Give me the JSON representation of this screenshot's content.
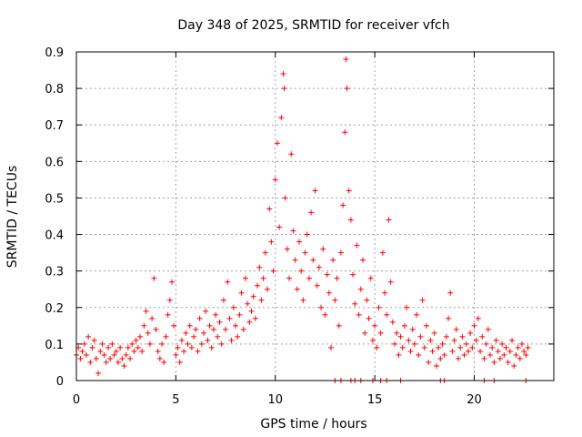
{
  "chart_data": {
    "type": "scatter",
    "title": "Day 348 of 2025, SRMTID for receiver vfch",
    "xlabel": "GPS time / hours",
    "ylabel": "SRMTID / TECUs",
    "xlim": [
      0,
      24
    ],
    "ylim": [
      0,
      0.9
    ],
    "xticks": [
      0,
      5,
      10,
      15,
      20
    ],
    "xtick_labels": [
      "0",
      "5",
      "10",
      "15",
      "20"
    ],
    "yticks": [
      0,
      0.1,
      0.2,
      0.3,
      0.4,
      0.5,
      0.6,
      0.7,
      0.8,
      0.9
    ],
    "ytick_labels": [
      "0",
      "0.1",
      "0.2",
      "0.3",
      "0.4",
      "0.5",
      "0.6",
      "0.7",
      "0.8",
      "0.9"
    ],
    "grid": true,
    "marker": "+",
    "color": "#ff0000",
    "series": [
      {
        "name": "SRMTID",
        "points": [
          [
            0.0,
            0.07
          ],
          [
            0.1,
            0.09
          ],
          [
            0.2,
            0.06
          ],
          [
            0.3,
            0.08
          ],
          [
            0.4,
            0.1
          ],
          [
            0.5,
            0.07
          ],
          [
            0.6,
            0.12
          ],
          [
            0.7,
            0.05
          ],
          [
            0.8,
            0.09
          ],
          [
            0.9,
            0.11
          ],
          [
            1.0,
            0.06
          ],
          [
            1.1,
            0.02
          ],
          [
            1.2,
            0.08
          ],
          [
            1.3,
            0.1
          ],
          [
            1.4,
            0.07
          ],
          [
            1.5,
            0.05
          ],
          [
            1.6,
            0.09
          ],
          [
            1.7,
            0.06
          ],
          [
            1.8,
            0.1
          ],
          [
            1.9,
            0.07
          ],
          [
            2.0,
            0.08
          ],
          [
            2.1,
            0.05
          ],
          [
            2.2,
            0.09
          ],
          [
            2.3,
            0.06
          ],
          [
            2.4,
            0.04
          ],
          [
            2.5,
            0.07
          ],
          [
            2.6,
            0.09
          ],
          [
            2.7,
            0.06
          ],
          [
            2.8,
            0.1
          ],
          [
            2.9,
            0.08
          ],
          [
            3.0,
            0.11
          ],
          [
            3.1,
            0.09
          ],
          [
            3.2,
            0.12
          ],
          [
            3.3,
            0.08
          ],
          [
            3.4,
            0.15
          ],
          [
            3.5,
            0.19
          ],
          [
            3.6,
            0.13
          ],
          [
            3.7,
            0.1
          ],
          [
            3.8,
            0.17
          ],
          [
            3.9,
            0.28
          ],
          [
            4.0,
            0.14
          ],
          [
            4.1,
            0.08
          ],
          [
            4.2,
            0.06
          ],
          [
            4.3,
            0.1
          ],
          [
            4.4,
            0.05
          ],
          [
            4.5,
            0.12
          ],
          [
            4.6,
            0.18
          ],
          [
            4.7,
            0.22
          ],
          [
            4.8,
            0.27
          ],
          [
            4.9,
            0.15
          ],
          [
            5.0,
            0.07
          ],
          [
            5.1,
            0.09
          ],
          [
            5.2,
            0.05
          ],
          [
            5.3,
            0.11
          ],
          [
            5.4,
            0.08
          ],
          [
            5.5,
            0.13
          ],
          [
            5.6,
            0.1
          ],
          [
            5.7,
            0.15
          ],
          [
            5.8,
            0.09
          ],
          [
            5.9,
            0.12
          ],
          [
            6.0,
            0.14
          ],
          [
            6.1,
            0.08
          ],
          [
            6.2,
            0.17
          ],
          [
            6.3,
            0.1
          ],
          [
            6.4,
            0.13
          ],
          [
            6.5,
            0.19
          ],
          [
            6.6,
            0.11
          ],
          [
            6.7,
            0.15
          ],
          [
            6.8,
            0.09
          ],
          [
            6.9,
            0.14
          ],
          [
            7.0,
            0.18
          ],
          [
            7.1,
            0.12
          ],
          [
            7.2,
            0.16
          ],
          [
            7.3,
            0.1
          ],
          [
            7.4,
            0.22
          ],
          [
            7.5,
            0.14
          ],
          [
            7.6,
            0.27
          ],
          [
            7.7,
            0.17
          ],
          [
            7.8,
            0.11
          ],
          [
            7.9,
            0.2
          ],
          [
            8.0,
            0.15
          ],
          [
            8.1,
            0.12
          ],
          [
            8.2,
            0.18
          ],
          [
            8.3,
            0.24
          ],
          [
            8.4,
            0.14
          ],
          [
            8.5,
            0.28
          ],
          [
            8.6,
            0.21
          ],
          [
            8.7,
            0.16
          ],
          [
            8.8,
            0.19
          ],
          [
            8.9,
            0.23
          ],
          [
            9.0,
            0.17
          ],
          [
            9.1,
            0.26
          ],
          [
            9.2,
            0.31
          ],
          [
            9.3,
            0.22
          ],
          [
            9.4,
            0.28
          ],
          [
            9.5,
            0.35
          ],
          [
            9.6,
            0.25
          ],
          [
            9.7,
            0.47
          ],
          [
            9.8,
            0.38
          ],
          [
            9.9,
            0.3
          ],
          [
            10.0,
            0.55
          ],
          [
            10.1,
            0.65
          ],
          [
            10.2,
            0.42
          ],
          [
            10.3,
            0.72
          ],
          [
            10.4,
            0.84
          ],
          [
            10.45,
            0.8
          ],
          [
            10.5,
            0.5
          ],
          [
            10.6,
            0.36
          ],
          [
            10.7,
            0.28
          ],
          [
            10.8,
            0.62
          ],
          [
            10.9,
            0.41
          ],
          [
            11.0,
            0.33
          ],
          [
            11.1,
            0.25
          ],
          [
            11.2,
            0.38
          ],
          [
            11.3,
            0.3
          ],
          [
            11.4,
            0.22
          ],
          [
            11.5,
            0.35
          ],
          [
            11.6,
            0.4
          ],
          [
            11.7,
            0.28
          ],
          [
            11.8,
            0.46
          ],
          [
            11.9,
            0.33
          ],
          [
            12.0,
            0.52
          ],
          [
            12.1,
            0.26
          ],
          [
            12.2,
            0.31
          ],
          [
            12.3,
            0.2
          ],
          [
            12.4,
            0.36
          ],
          [
            12.5,
            0.18
          ],
          [
            12.6,
            0.29
          ],
          [
            12.7,
            0.24
          ],
          [
            12.8,
            0.09
          ],
          [
            12.9,
            0.33
          ],
          [
            13.0,
            0.22
          ],
          [
            13.1,
            0.28
          ],
          [
            13.2,
            0.15
          ],
          [
            13.3,
            0.35
          ],
          [
            13.4,
            0.48
          ],
          [
            13.5,
            0.68
          ],
          [
            13.55,
            0.88
          ],
          [
            13.6,
            0.8
          ],
          [
            13.7,
            0.52
          ],
          [
            13.8,
            0.44
          ],
          [
            13.9,
            0.29
          ],
          [
            14.0,
            0.21
          ],
          [
            14.1,
            0.37
          ],
          [
            14.2,
            0.18
          ],
          [
            14.3,
            0.25
          ],
          [
            14.4,
            0.33
          ],
          [
            14.5,
            0.13
          ],
          [
            14.6,
            0.22
          ],
          [
            14.7,
            0.17
          ],
          [
            14.8,
            0.28
          ],
          [
            14.9,
            0.11
          ],
          [
            15.0,
            0.15
          ],
          [
            15.1,
            0.09
          ],
          [
            15.2,
            0.2
          ],
          [
            15.3,
            0.13
          ],
          [
            15.4,
            0.35
          ],
          [
            15.5,
            0.24
          ],
          [
            15.6,
            0.18
          ],
          [
            15.7,
            0.44
          ],
          [
            15.8,
            0.27
          ],
          [
            15.9,
            0.16
          ],
          [
            16.0,
            0.1
          ],
          [
            16.1,
            0.13
          ],
          [
            16.2,
            0.07
          ],
          [
            16.3,
            0.12
          ],
          [
            16.4,
            0.09
          ],
          [
            16.5,
            0.15
          ],
          [
            16.6,
            0.2
          ],
          [
            16.7,
            0.11
          ],
          [
            16.8,
            0.08
          ],
          [
            16.9,
            0.14
          ],
          [
            17.0,
            0.1
          ],
          [
            17.1,
            0.18
          ],
          [
            17.2,
            0.07
          ],
          [
            17.3,
            0.12
          ],
          [
            17.4,
            0.22
          ],
          [
            17.5,
            0.09
          ],
          [
            17.6,
            0.15
          ],
          [
            17.7,
            0.05
          ],
          [
            17.8,
            0.11
          ],
          [
            17.9,
            0.08
          ],
          [
            18.0,
            0.13
          ],
          [
            18.1,
            0.04
          ],
          [
            18.2,
            0.09
          ],
          [
            18.3,
            0.06
          ],
          [
            18.4,
            0.1
          ],
          [
            18.5,
            0.07
          ],
          [
            18.6,
            0.12
          ],
          [
            18.7,
            0.17
          ],
          [
            18.8,
            0.24
          ],
          [
            18.9,
            0.08
          ],
          [
            19.0,
            0.11
          ],
          [
            19.1,
            0.14
          ],
          [
            19.2,
            0.06
          ],
          [
            19.3,
            0.09
          ],
          [
            19.4,
            0.12
          ],
          [
            19.5,
            0.07
          ],
          [
            19.6,
            0.1
          ],
          [
            19.7,
            0.08
          ],
          [
            19.8,
            0.13
          ],
          [
            19.9,
            0.09
          ],
          [
            20.0,
            0.15
          ],
          [
            20.1,
            0.11
          ],
          [
            20.2,
            0.17
          ],
          [
            20.3,
            0.08
          ],
          [
            20.4,
            0.12
          ],
          [
            20.5,
            0.06
          ],
          [
            20.6,
            0.1
          ],
          [
            20.7,
            0.14
          ],
          [
            20.8,
            0.07
          ],
          [
            20.9,
            0.09
          ],
          [
            21.0,
            0.05
          ],
          [
            21.1,
            0.11
          ],
          [
            21.2,
            0.08
          ],
          [
            21.3,
            0.06
          ],
          [
            21.4,
            0.1
          ],
          [
            21.5,
            0.07
          ],
          [
            21.6,
            0.09
          ],
          [
            21.7,
            0.05
          ],
          [
            21.8,
            0.08
          ],
          [
            21.9,
            0.11
          ],
          [
            22.0,
            0.04
          ],
          [
            22.1,
            0.07
          ],
          [
            22.2,
            0.09
          ],
          [
            22.3,
            0.06
          ],
          [
            22.4,
            0.1
          ],
          [
            22.5,
            0.08
          ],
          [
            22.6,
            0.07
          ],
          [
            22.7,
            0.09
          ],
          [
            13.0,
            0.0
          ],
          [
            13.3,
            0.0
          ],
          [
            13.8,
            0.0
          ],
          [
            14.0,
            0.0
          ],
          [
            14.3,
            0.0
          ],
          [
            14.9,
            0.0
          ],
          [
            15.3,
            0.0
          ],
          [
            15.6,
            0.0
          ],
          [
            16.3,
            0.0
          ],
          [
            18.3,
            0.0
          ],
          [
            18.5,
            0.0
          ],
          [
            20.5,
            0.0
          ],
          [
            21.0,
            0.0
          ],
          [
            22.6,
            0.0
          ]
        ]
      }
    ]
  }
}
